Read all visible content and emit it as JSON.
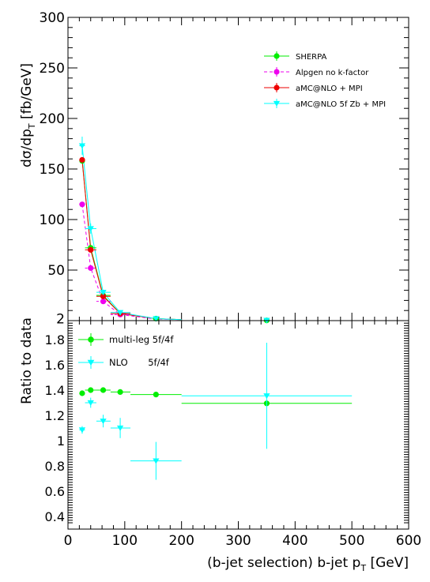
{
  "chart_data": [
    {
      "type": "line",
      "panel": "top",
      "ylabel_main": "dσ/dp",
      "ylabel_sub": "T",
      "ylabel_unit": " [fb/GeV]",
      "xlim": [
        0,
        600
      ],
      "ylim": [
        0,
        300
      ],
      "yticks": [
        "2",
        "50",
        "100",
        "150",
        "200",
        "250",
        "300"
      ],
      "ytick_values": [
        2,
        50,
        100,
        150,
        200,
        250,
        300
      ],
      "legend_position": "top-right",
      "series": [
        {
          "name": "SHERPA",
          "color": "#00ee00",
          "marker": "circle",
          "dash": "solid",
          "x": [
            25,
            40,
            62,
            92,
            155,
            350
          ],
          "y": [
            158,
            72,
            25,
            7,
            2,
            0.2
          ],
          "curve_x": [
            25,
            40,
            62,
            92,
            155,
            200
          ],
          "curve_y": [
            158,
            72,
            25,
            7,
            2,
            1
          ]
        },
        {
          "name": "Alpgen no k-factor",
          "color": "#ee00ee",
          "marker": "circle",
          "dash": "dashed",
          "x": [
            25,
            40,
            62,
            92
          ],
          "y": [
            115,
            52,
            19,
            6
          ],
          "curve_x": [
            25,
            40,
            62,
            92,
            155,
            200
          ],
          "curve_y": [
            115,
            52,
            19,
            6,
            1.5,
            1
          ]
        },
        {
          "name": "aMC@NLO + MPI",
          "color": "#ee0000",
          "marker": "circle",
          "dash": "solid",
          "x": [
            25,
            40,
            62,
            92
          ],
          "y": [
            159,
            70,
            24,
            7
          ],
          "curve_x": [
            25,
            40,
            62,
            92,
            155,
            200
          ],
          "curve_y": [
            159,
            70,
            24,
            7,
            2,
            1
          ]
        },
        {
          "name": "aMC@NLO 5f Zb + MPI",
          "color": "#00ffff",
          "marker": "triangle-down",
          "dash": "solid",
          "x": [
            25,
            40,
            62,
            92,
            155,
            350
          ],
          "y": [
            173,
            91,
            28,
            8,
            2,
            0.3
          ],
          "yerr": [
            9,
            5,
            2,
            1,
            0.3,
            0.1
          ],
          "curve_x": [
            25,
            40,
            62,
            92,
            155,
            200
          ],
          "curve_y": [
            173,
            91,
            28,
            8,
            2,
            1
          ]
        }
      ]
    },
    {
      "type": "scatter",
      "panel": "bottom",
      "ylabel": "Ratio to data",
      "xlabel_main": "(b-jet selection) b-jet p",
      "xlabel_sub": "T",
      "xlabel_unit": " [GeV]",
      "xlim": [
        0,
        600
      ],
      "ylim": [
        0.3,
        1.95
      ],
      "xticks": [
        "0",
        "100",
        "200",
        "300",
        "400",
        "500",
        "600"
      ],
      "xtick_values": [
        0,
        100,
        200,
        300,
        400,
        500,
        600
      ],
      "yticks": [
        "0.4",
        "0.6",
        "0.8",
        "1",
        "1.2",
        "1.4",
        "1.6",
        "1.8"
      ],
      "ytick_values": [
        0.4,
        0.6,
        0.8,
        1.0,
        1.2,
        1.4,
        1.6,
        1.8
      ],
      "legend_position": "top-left",
      "series": [
        {
          "name": "multi-leg 5f/4f",
          "color": "#00ee00",
          "marker": "circle",
          "x": [
            25,
            40,
            62,
            92,
            155,
            350
          ],
          "xlo": [
            20,
            30,
            50,
            75,
            110,
            200
          ],
          "xhi": [
            30,
            50,
            75,
            110,
            200,
            500
          ],
          "y": [
            1.375,
            1.4,
            1.4,
            1.385,
            1.365,
            1.295
          ],
          "yerr": [
            0.01,
            0.01,
            0.01,
            0.02,
            0.02,
            0.02
          ]
        },
        {
          "name": "NLO       5f/4f",
          "color": "#00ffff",
          "marker": "triangle-down",
          "x": [
            25,
            40,
            62,
            92,
            155,
            350
          ],
          "xlo": [
            20,
            30,
            50,
            75,
            110,
            200
          ],
          "xhi": [
            30,
            50,
            75,
            110,
            200,
            500
          ],
          "y": [
            1.085,
            1.3,
            1.155,
            1.1,
            0.84,
            1.355
          ],
          "yerr": [
            0.03,
            0.04,
            0.05,
            0.08,
            0.15,
            0.42
          ]
        }
      ]
    }
  ]
}
